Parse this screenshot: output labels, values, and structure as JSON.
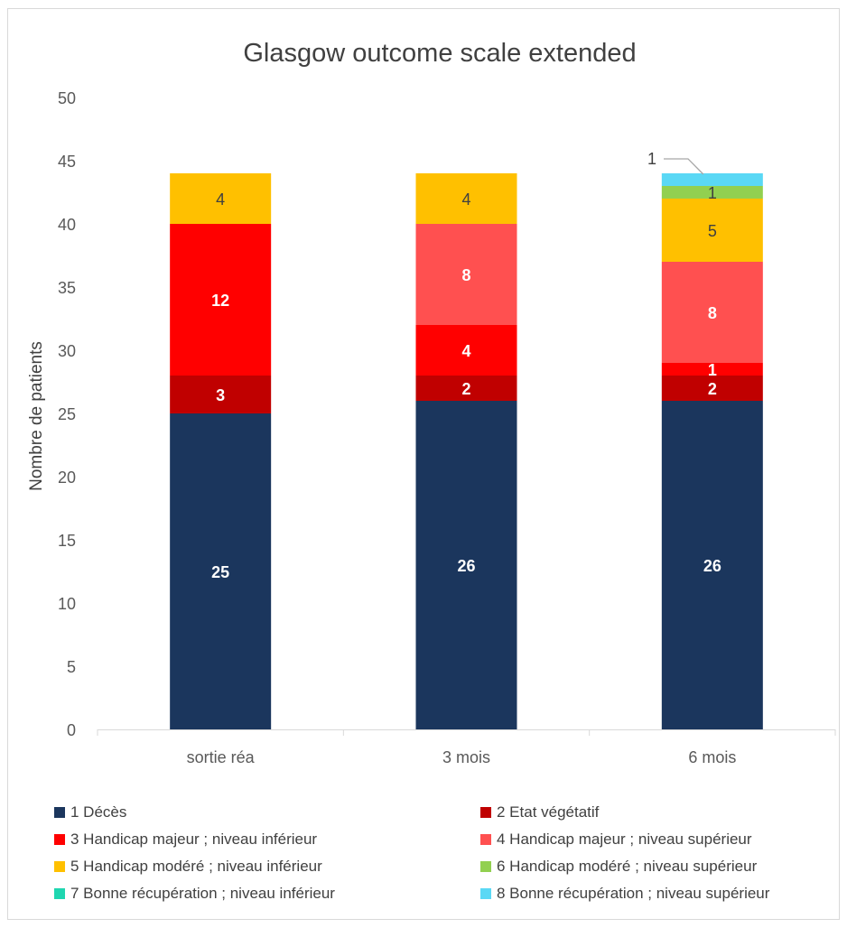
{
  "chart_data": {
    "type": "bar",
    "stacked": true,
    "title": "Glasgow outcome scale extended",
    "xlabel": "",
    "ylabel": "Nombre de patients",
    "ylim": [
      0,
      50
    ],
    "yticks": [
      0,
      5,
      10,
      15,
      20,
      25,
      30,
      35,
      40,
      45,
      50
    ],
    "grid": false,
    "legend_position": "bottom",
    "categories": [
      "sortie réa",
      "3 mois",
      "6 mois"
    ],
    "series": [
      {
        "name": "1 Décès",
        "color": "#1b365d",
        "label_color": "#ffffff",
        "label_bold": true,
        "values": [
          25,
          26,
          26
        ]
      },
      {
        "name": "2 Etat végétatif",
        "color": "#c00000",
        "label_color": "#ffffff",
        "label_bold": true,
        "values": [
          3,
          2,
          2
        ]
      },
      {
        "name": "3 Handicap majeur ; niveau inférieur",
        "color": "#ff0000",
        "label_color": "#ffffff",
        "label_bold": true,
        "values": [
          12,
          4,
          1
        ]
      },
      {
        "name": "4 Handicap majeur ; niveau supérieur",
        "color": "#ff5050",
        "label_color": "#ffffff",
        "label_bold": true,
        "values": [
          0,
          8,
          8
        ]
      },
      {
        "name": "5 Handicap modéré ; niveau inférieur",
        "color": "#ffc000",
        "label_color": "#404040",
        "label_bold": false,
        "values": [
          4,
          4,
          5
        ]
      },
      {
        "name": "6 Handicap modéré ; niveau supérieur",
        "color": "#92d050",
        "label_color": "#404040",
        "label_bold": false,
        "values": [
          0,
          0,
          1
        ]
      },
      {
        "name": "7 Bonne récupération ; niveau inférieur",
        "color": "#1fd6b0",
        "label_color": "#404040",
        "label_bold": false,
        "values": [
          0,
          0,
          0
        ]
      },
      {
        "name": "8 Bonne récupération ; niveau supérieur",
        "color": "#5ad8f5",
        "label_color": "#404040",
        "label_bold": false,
        "values": [
          0,
          0,
          1
        ],
        "callout": true
      }
    ]
  }
}
